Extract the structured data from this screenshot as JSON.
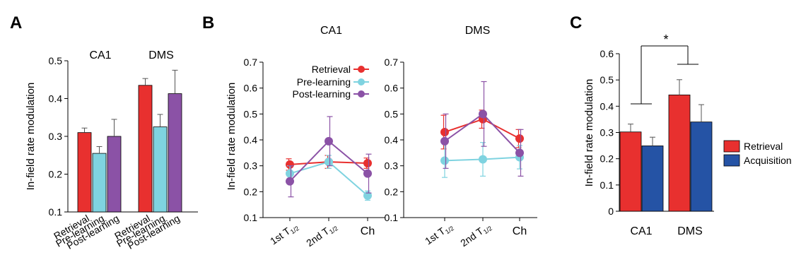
{
  "chart_data": [
    {
      "panel_label": "A",
      "type": "bar",
      "ylabel": "In-field rate modulation",
      "ylim": [
        0.1,
        0.5
      ],
      "yticks": [
        "0.1",
        "0.2",
        "0.3",
        "0.4",
        "0.5"
      ],
      "groups": [
        {
          "name": "CA1",
          "categories": [
            "Retrieval",
            "Pre-learning",
            "Post-learning"
          ],
          "values": [
            0.31,
            0.255,
            0.3
          ],
          "errors": [
            0.012,
            0.018,
            0.045
          ]
        },
        {
          "name": "DMS",
          "categories": [
            "Retrieval",
            "Pre-learning",
            "Post-learning"
          ],
          "values": [
            0.435,
            0.325,
            0.413
          ],
          "errors": [
            0.018,
            0.033,
            0.062
          ]
        }
      ],
      "colors": [
        "#e8302f",
        "#7fd3e0",
        "#8b52a6"
      ]
    },
    {
      "panel_label": "B",
      "type": "line",
      "ylabel": "In-field rate modulation",
      "ylim": [
        0.1,
        0.7
      ],
      "yticks": [
        "0.1",
        "0.2",
        "0.3",
        "0.4",
        "0.5",
        "0.6",
        "0.7"
      ],
      "categories": [
        "1st T",
        "2nd T",
        "Ch"
      ],
      "category_subscript": "1/2",
      "legend": [
        "Retrieval",
        "Pre-learning",
        "Post-learning"
      ],
      "subplots": [
        {
          "title": "CA1",
          "series": [
            {
              "name": "Retrieval",
              "color": "#e8302f",
              "values": [
                0.305,
                0.315,
                0.31
              ],
              "errors": [
                0.022,
                0.025,
                0.02
              ]
            },
            {
              "name": "Pre-learning",
              "color": "#7fd3e0",
              "values": [
                0.27,
                0.315,
                0.185
              ],
              "errors": [
                0.03,
                0.025,
                0.018
              ]
            },
            {
              "name": "Post-learning",
              "color": "#8b52a6",
              "values": [
                0.24,
                0.395,
                0.27
              ],
              "errors": [
                0.06,
                0.095,
                0.075
              ]
            }
          ]
        },
        {
          "title": "DMS",
          "series": [
            {
              "name": "Retrieval",
              "color": "#e8302f",
              "values": [
                0.43,
                0.48,
                0.405
              ],
              "errors": [
                0.065,
                0.035,
                0.035
              ]
            },
            {
              "name": "Pre-learning",
              "color": "#7fd3e0",
              "values": [
                0.32,
                0.325,
                0.333
              ],
              "errors": [
                0.065,
                0.065,
                0.045
              ]
            },
            {
              "name": "Post-learning",
              "color": "#8b52a6",
              "values": [
                0.395,
                0.5,
                0.35
              ],
              "errors": [
                0.105,
                0.125,
                0.09
              ]
            }
          ]
        }
      ]
    },
    {
      "panel_label": "C",
      "type": "bar",
      "ylabel": "In-field rate modulation",
      "ylim": [
        0,
        0.6
      ],
      "yticks": [
        "0",
        "0.1",
        "0.2",
        "0.3",
        "0.4",
        "0.5",
        "0.6"
      ],
      "categories": [
        "CA1",
        "DMS"
      ],
      "series": [
        {
          "name": "Retrieval",
          "color": "#e8302f",
          "values": [
            0.302,
            0.443
          ],
          "errors": [
            0.03,
            0.058
          ]
        },
        {
          "name": "Acquisition",
          "color": "#2553a5",
          "values": [
            0.249,
            0.34
          ],
          "errors": [
            0.033,
            0.066
          ]
        }
      ],
      "significance": "*",
      "legend": [
        "Retrieval",
        "Acquisition"
      ]
    }
  ]
}
